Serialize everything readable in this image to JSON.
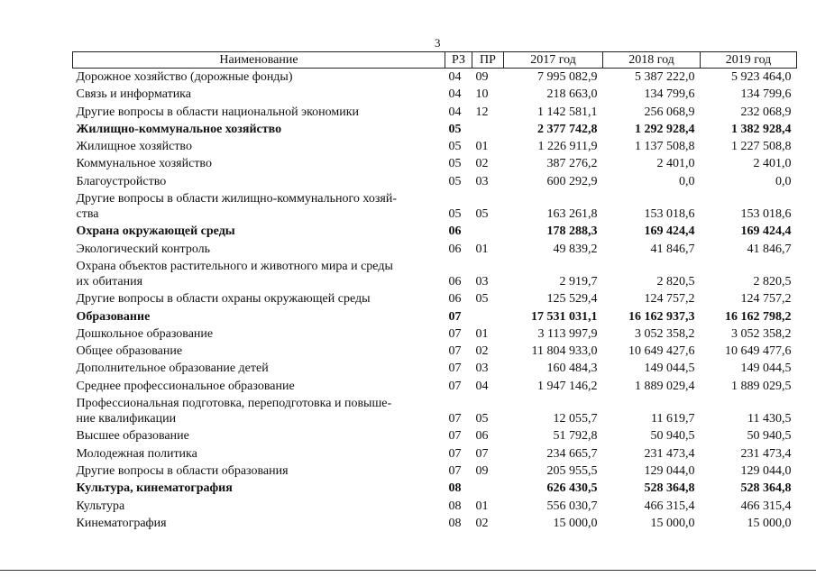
{
  "page_number": "3",
  "table": {
    "header": [
      "Наименование",
      "РЗ",
      "ПР",
      "2017 год",
      "2018 год",
      "2019 год"
    ],
    "rows": [
      [
        "Дорожное хозяйство (дорожные фонды)",
        "04",
        "09",
        "7 995 082,9",
        "5 387 222,0",
        "5 923 464,0"
      ],
      [
        "Связь и информатика",
        "04",
        "10",
        "218 663,0",
        "134 799,6",
        "134 799,6"
      ],
      [
        "Другие вопросы в области национальной экономики",
        "04",
        "12",
        "1 142 581,1",
        "256 068,9",
        "232 068,9"
      ],
      [
        "Жилищно-коммунальное хозяйство",
        "05",
        null,
        "2 377 742,8",
        "1 292 928,4",
        "1 382 928,4"
      ],
      [
        "Жилищное хозяйство",
        "05",
        "01",
        "1 226 911,9",
        "1 137 508,8",
        "1 227 508,8"
      ],
      [
        "Коммунальное хозяйство",
        "05",
        "02",
        "387 276,2",
        "2 401,0",
        "2 401,0"
      ],
      [
        "Благоустройство",
        "05",
        "03",
        "600 292,9",
        "0,0",
        "0,0"
      ],
      [
        "Другие вопросы в области жилищно-коммунального хозяй-\nства",
        "05",
        "05",
        "163 261,8",
        "153 018,6",
        "153 018,6"
      ],
      [
        "Охрана окружающей среды",
        "06",
        null,
        "178 288,3",
        "169 424,4",
        "169 424,4"
      ],
      [
        "Экологический контроль",
        "06",
        "01",
        "49 839,2",
        "41 846,7",
        "41 846,7"
      ],
      [
        "Охрана объектов растительного и животного мира и среды\nих обитания",
        "06",
        "03",
        "2 919,7",
        "2 820,5",
        "2 820,5"
      ],
      [
        "Другие вопросы в области охраны окружающей среды",
        "06",
        "05",
        "125 529,4",
        "124 757,2",
        "124 757,2"
      ],
      [
        "Образование",
        "07",
        null,
        "17 531 031,1",
        "16 162 937,3",
        "16 162 798,2"
      ],
      [
        "Дошкольное образование",
        "07",
        "01",
        "3 113 997,9",
        "3 052 358,2",
        "3 052 358,2"
      ],
      [
        "Общее образование",
        "07",
        "02",
        "11 804 933,0",
        "10 649 427,6",
        "10 649 477,6"
      ],
      [
        "Дополнительное образование детей",
        "07",
        "03",
        "160 484,3",
        "149 044,5",
        "149 044,5"
      ],
      [
        "Среднее профессиональное образование",
        "07",
        "04",
        "1 947 146,2",
        "1 889 029,4",
        "1 889 029,5"
      ],
      [
        "Профессиональная подготовка, переподготовка и повыше-\nние квалификации",
        "07",
        "05",
        "12 055,7",
        "11 619,7",
        "11 430,5"
      ],
      [
        "Высшее образование",
        "07",
        "06",
        "51 792,8",
        "50 940,5",
        "50 940,5"
      ],
      [
        "Молодежная политика",
        "07",
        "07",
        "234 665,7",
        "231 473,4",
        "231 473,4"
      ],
      [
        "Другие вопросы в области образования",
        "07",
        "09",
        "205 955,5",
        "129 044,0",
        "129 044,0"
      ],
      [
        "Культура, кинематография",
        "08",
        null,
        "626 430,5",
        "528 364,8",
        "528 364,8"
      ],
      [
        "Культура",
        "08",
        "01",
        "556 030,7",
        "466 315,4",
        "466 315,4"
      ],
      [
        "Кинематография",
        "08",
        "02",
        "15 000,0",
        "15 000,0",
        "15 000,0"
      ]
    ]
  }
}
